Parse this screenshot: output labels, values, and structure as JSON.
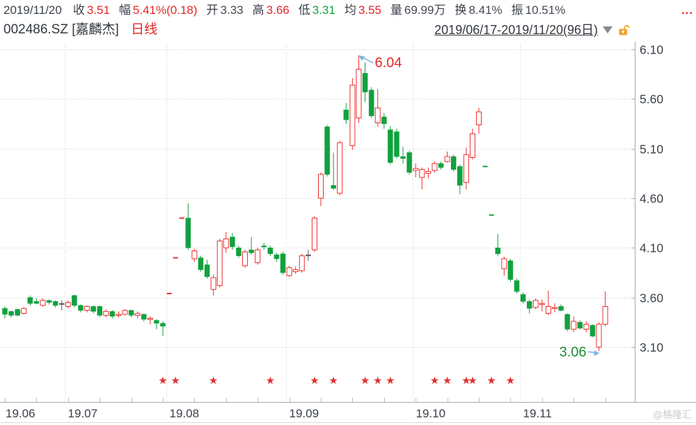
{
  "colors": {
    "up": "#ee2c2c",
    "down": "#11a13e",
    "flat": "#565b61",
    "text_dark": "#3b424b",
    "text_red": "#e82525",
    "text_green": "#0fa33c",
    "annotation_green": "#1f8b37",
    "grid": "#cccccc",
    "axis": "#a6aaad",
    "arrow": "#7cb5dc",
    "watermark": "#c8cbd0",
    "lock": "#f0a32f",
    "caret": "#83898f",
    "star": "#e03030"
  },
  "info_bar": {
    "date": "2019/11/20",
    "fields": [
      {
        "label": "收",
        "value": "3.51",
        "color": "red"
      },
      {
        "label": "幅",
        "value": "5.41%(0.18)",
        "color": "red"
      },
      {
        "label": "开",
        "value": "3.33",
        "color": "dark"
      },
      {
        "label": "高",
        "value": "3.66",
        "color": "red"
      },
      {
        "label": "低",
        "value": "3.31",
        "color": "green"
      },
      {
        "label": "均",
        "value": "3.55",
        "color": "red"
      },
      {
        "label": "量",
        "value": "69.99万",
        "color": "dark"
      },
      {
        "label": "换",
        "value": "8.41%",
        "color": "dark"
      },
      {
        "label": "振",
        "value": "10.51%",
        "color": "dark"
      }
    ],
    "more": "..."
  },
  "title_bar": {
    "symbol_name": "002486.SZ [嘉麟杰]",
    "period": "日线",
    "range": "2019/06/17-2019/11/20(96日)",
    "caret_icon": "▼",
    "lock_icon": "unlocked-orange-padlock"
  },
  "watermark": "@格隆汇",
  "chart_data": {
    "type": "candlestick",
    "title": "002486.SZ 嘉麟杰 日线 2019/06/17-2019/11/20 (96日)",
    "ylim": [
      3.1,
      6.1
    ],
    "grid": "dotted",
    "y_tick_labels": [
      "6.10",
      "5.60",
      "5.10",
      "4.60",
      "4.10",
      "3.60",
      "3.10"
    ],
    "months": [
      {
        "label": "19.06",
        "start_index": 0
      },
      {
        "label": "19.07",
        "start_index": 10
      },
      {
        "label": "19.08",
        "start_index": 26
      },
      {
        "label": "19.09",
        "start_index": 45
      },
      {
        "label": "19.10",
        "start_index": 65
      },
      {
        "label": "19.11",
        "start_index": 82
      }
    ],
    "annotations": [
      {
        "text": "6.04",
        "index": 56,
        "price": 6.04,
        "color_key": "text_red",
        "side": "right"
      },
      {
        "text": "3.06",
        "index": 94,
        "price": 3.06,
        "color_key": "annotation_green",
        "side": "left"
      }
    ],
    "star_indices": [
      25,
      27,
      33,
      42,
      49,
      52,
      57,
      59,
      61,
      68,
      70,
      73,
      74,
      77,
      80
    ],
    "star_glyph": "★",
    "candles": [
      [
        3.49,
        3.51,
        3.39,
        3.43,
        "g"
      ],
      [
        3.46,
        3.47,
        3.4,
        3.42,
        "g"
      ],
      [
        3.48,
        3.49,
        3.41,
        3.42,
        "g"
      ],
      [
        3.44,
        3.5,
        3.43,
        3.49,
        "r"
      ],
      [
        3.6,
        3.62,
        3.52,
        3.54,
        "g"
      ],
      [
        3.56,
        3.59,
        3.53,
        3.54,
        "g"
      ],
      [
        3.52,
        3.59,
        3.51,
        3.57,
        "r"
      ],
      [
        3.57,
        3.58,
        3.53,
        3.55,
        "g"
      ],
      [
        3.56,
        3.57,
        3.5,
        3.52,
        "g"
      ],
      [
        3.54,
        3.57,
        3.47,
        3.54,
        "f"
      ],
      [
        3.51,
        3.57,
        3.49,
        3.55,
        "r"
      ],
      [
        3.62,
        3.63,
        3.5,
        3.52,
        "g"
      ],
      [
        3.52,
        3.53,
        3.45,
        3.47,
        "g"
      ],
      [
        3.47,
        3.52,
        3.45,
        3.51,
        "r"
      ],
      [
        3.51,
        3.52,
        3.44,
        3.46,
        "g"
      ],
      [
        3.51,
        3.52,
        3.4,
        3.42,
        "g"
      ],
      [
        3.42,
        3.48,
        3.4,
        3.46,
        "r"
      ],
      [
        3.46,
        3.47,
        3.39,
        3.41,
        "g"
      ],
      [
        3.42,
        3.46,
        3.4,
        3.43,
        "r"
      ],
      [
        3.43,
        3.48,
        3.42,
        3.47,
        "r"
      ],
      [
        3.47,
        3.48,
        3.4,
        3.42,
        "g"
      ],
      [
        3.42,
        3.46,
        3.39,
        3.44,
        "r"
      ],
      [
        3.43,
        3.44,
        3.36,
        3.38,
        "g"
      ],
      [
        3.38,
        3.41,
        3.33,
        3.39,
        "r"
      ],
      [
        3.37,
        3.38,
        3.28,
        3.34,
        "g"
      ],
      [
        3.34,
        3.36,
        3.21,
        3.31,
        "g"
      ],
      [
        3.64,
        3.64,
        3.64,
        3.64,
        "r"
      ],
      [
        4.0,
        4.0,
        4.0,
        4.0,
        "r"
      ],
      [
        4.4,
        4.4,
        4.4,
        4.4,
        "r"
      ],
      [
        4.4,
        4.55,
        4.08,
        4.1,
        "g"
      ],
      [
        3.99,
        4.09,
        3.96,
        4.07,
        "r"
      ],
      [
        4.0,
        4.02,
        3.86,
        3.88,
        "g"
      ],
      [
        3.93,
        3.98,
        3.79,
        3.81,
        "g"
      ],
      [
        3.68,
        3.83,
        3.62,
        3.8,
        "r"
      ],
      [
        3.72,
        4.19,
        3.7,
        4.17,
        "r"
      ],
      [
        4.1,
        4.26,
        4.05,
        4.19,
        "r"
      ],
      [
        4.21,
        4.25,
        4.08,
        4.11,
        "g"
      ],
      [
        4.1,
        4.12,
        4.0,
        4.02,
        "g"
      ],
      [
        3.92,
        4.08,
        3.9,
        4.06,
        "r"
      ],
      [
        4.08,
        4.21,
        4.03,
        4.05,
        "g"
      ],
      [
        3.95,
        4.1,
        3.93,
        4.08,
        "r"
      ],
      [
        4.12,
        4.15,
        4.08,
        4.11,
        "g"
      ],
      [
        4.1,
        4.12,
        4.02,
        4.04,
        "g"
      ],
      [
        4.03,
        4.05,
        3.96,
        3.99,
        "g"
      ],
      [
        4.04,
        4.06,
        3.83,
        3.85,
        "g"
      ],
      [
        3.82,
        3.92,
        3.81,
        3.9,
        "r"
      ],
      [
        3.86,
        3.91,
        3.84,
        3.88,
        "r"
      ],
      [
        3.87,
        4.04,
        3.85,
        4.02,
        "r"
      ],
      [
        4.03,
        4.08,
        3.97,
        4.03,
        "f"
      ],
      [
        4.08,
        4.42,
        4.06,
        4.4,
        "r"
      ],
      [
        4.6,
        4.86,
        4.52,
        4.84,
        "r"
      ],
      [
        5.32,
        5.34,
        4.82,
        4.84,
        "g"
      ],
      [
        4.73,
        5.06,
        4.68,
        4.7,
        "g"
      ],
      [
        4.65,
        5.18,
        4.63,
        5.16,
        "r"
      ],
      [
        5.49,
        5.56,
        5.35,
        5.39,
        "g"
      ],
      [
        5.13,
        5.81,
        5.09,
        5.74,
        "r"
      ],
      [
        5.41,
        6.04,
        5.36,
        5.9,
        "r"
      ],
      [
        5.86,
        5.97,
        5.57,
        5.67,
        "g"
      ],
      [
        5.69,
        5.72,
        5.41,
        5.43,
        "g"
      ],
      [
        5.36,
        5.7,
        5.32,
        5.51,
        "r"
      ],
      [
        5.42,
        5.46,
        5.3,
        5.35,
        "g"
      ],
      [
        5.29,
        5.33,
        4.94,
        4.96,
        "g"
      ],
      [
        5.27,
        5.3,
        5.0,
        5.02,
        "g"
      ],
      [
        5.02,
        5.12,
        4.95,
        5.0,
        "g"
      ],
      [
        5.06,
        5.08,
        4.84,
        4.86,
        "g"
      ],
      [
        4.88,
        4.95,
        4.81,
        4.9,
        "r"
      ],
      [
        4.81,
        4.91,
        4.69,
        4.89,
        "r"
      ],
      [
        4.85,
        4.91,
        4.8,
        4.87,
        "r"
      ],
      [
        4.88,
        4.97,
        4.86,
        4.95,
        "r"
      ],
      [
        4.95,
        4.97,
        4.89,
        4.91,
        "g"
      ],
      [
        4.97,
        5.07,
        4.96,
        5.02,
        "r"
      ],
      [
        5.02,
        5.04,
        4.87,
        4.89,
        "g"
      ],
      [
        4.92,
        4.94,
        4.64,
        4.73,
        "g"
      ],
      [
        4.76,
        5.11,
        4.69,
        5.04,
        "r"
      ],
      [
        5.01,
        5.3,
        4.99,
        5.25,
        "r"
      ],
      [
        5.34,
        5.51,
        5.25,
        5.47,
        "r"
      ],
      [
        4.92,
        4.92,
        4.92,
        4.92,
        "g"
      ],
      [
        4.43,
        4.43,
        4.43,
        4.43,
        "g"
      ],
      [
        4.1,
        4.24,
        4.02,
        4.04,
        "g"
      ],
      [
        3.89,
        4.01,
        3.82,
        3.99,
        "r"
      ],
      [
        3.97,
        3.99,
        3.76,
        3.78,
        "g"
      ],
      [
        3.77,
        3.79,
        3.64,
        3.66,
        "g"
      ],
      [
        3.63,
        3.65,
        3.54,
        3.56,
        "g"
      ],
      [
        3.56,
        3.58,
        3.44,
        3.49,
        "g"
      ],
      [
        3.5,
        3.59,
        3.48,
        3.57,
        "r"
      ],
      [
        3.53,
        3.58,
        3.46,
        3.54,
        "r"
      ],
      [
        3.44,
        3.67,
        3.42,
        3.51,
        "r"
      ],
      [
        3.49,
        3.54,
        3.45,
        3.5,
        "r"
      ],
      [
        3.51,
        3.53,
        3.46,
        3.47,
        "g"
      ],
      [
        3.43,
        3.44,
        3.26,
        3.28,
        "g"
      ],
      [
        3.28,
        3.41,
        3.25,
        3.36,
        "r"
      ],
      [
        3.35,
        3.37,
        3.28,
        3.29,
        "g"
      ],
      [
        3.28,
        3.36,
        3.25,
        3.33,
        "r"
      ],
      [
        3.32,
        3.33,
        3.2,
        3.21,
        "g"
      ],
      [
        3.1,
        3.35,
        3.06,
        3.33,
        "r"
      ],
      [
        3.33,
        3.66,
        3.31,
        3.51,
        "r"
      ]
    ]
  }
}
